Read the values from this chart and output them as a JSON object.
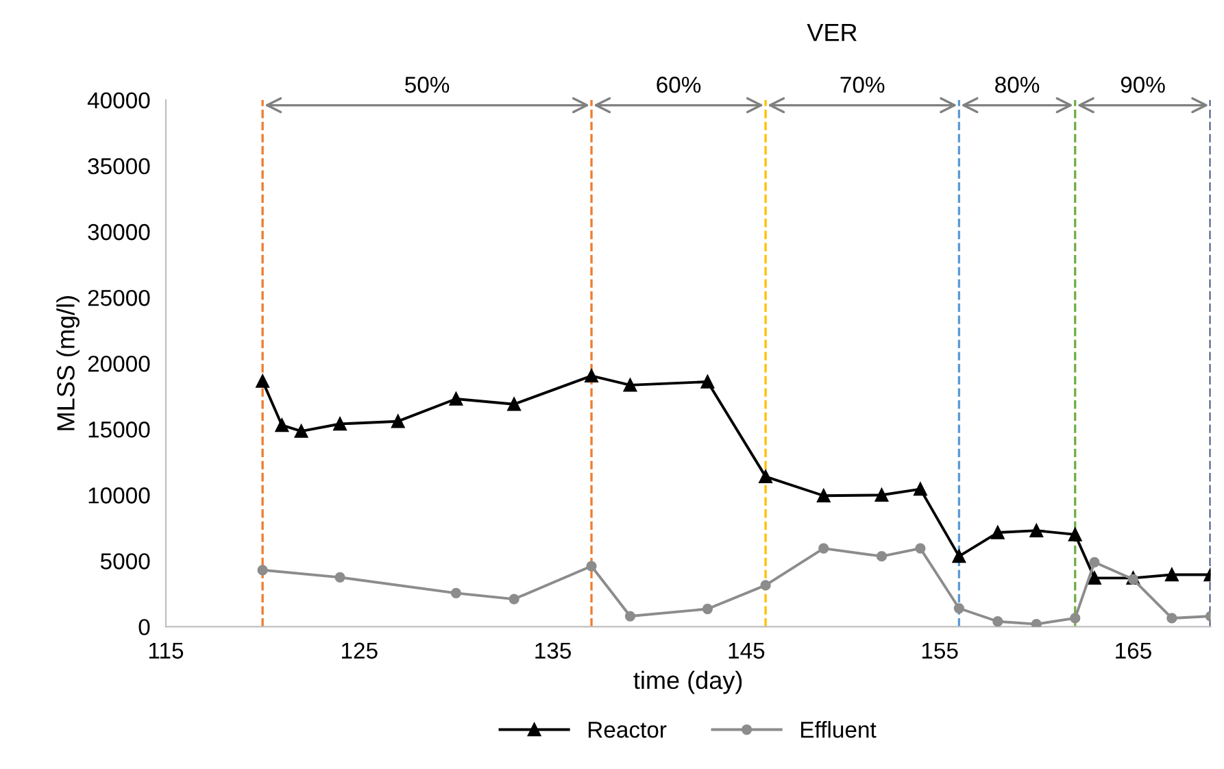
{
  "chart_data": {
    "type": "line",
    "title": "VER",
    "xlabel": "time (day)",
    "ylabel": "MLSS (mg/l)",
    "xlim": [
      115,
      169
    ],
    "xticks": [
      115,
      125,
      135,
      145,
      155,
      165
    ],
    "ylim": [
      0,
      40000
    ],
    "yticks": [
      0,
      5000,
      10000,
      15000,
      20000,
      25000,
      30000,
      35000,
      40000
    ],
    "grid": false,
    "legend": "bottom",
    "line_style": "solid",
    "series": [
      {
        "name": "Reactor",
        "color": "#000000",
        "marker": "triangle",
        "x": [
          120,
          121,
          122,
          124,
          127,
          130,
          133,
          137,
          139,
          143,
          146,
          149,
          152,
          154,
          156,
          158,
          160,
          162,
          163,
          165,
          167,
          169
        ],
        "values": [
          18650,
          15300,
          14850,
          15400,
          15600,
          17300,
          16900,
          19050,
          18350,
          18600,
          11400,
          9950,
          10000,
          10450,
          5350,
          7150,
          7300,
          7000,
          3700,
          3700,
          3950,
          3950
        ]
      },
      {
        "name": "Effluent",
        "color": "#8c8c8c",
        "marker": "circle",
        "x": [
          120,
          124,
          130,
          133,
          137,
          139,
          143,
          146,
          149,
          152,
          154,
          156,
          158,
          160,
          162,
          163,
          165,
          167,
          169
        ],
        "values": [
          4300,
          3750,
          2550,
          2100,
          4600,
          800,
          1350,
          3150,
          5950,
          5350,
          5950,
          1400,
          400,
          200,
          650,
          4900,
          3600,
          650,
          800
        ]
      }
    ],
    "ref_lines": [
      {
        "axis": "x",
        "value": 120,
        "color": "#ed7d31",
        "line_style": "dashed"
      },
      {
        "axis": "x",
        "value": 137,
        "color": "#ed7d31",
        "line_style": "dashed"
      },
      {
        "axis": "x",
        "value": 146,
        "color": "#ffc000",
        "line_style": "dashed"
      },
      {
        "axis": "x",
        "value": 156,
        "color": "#5b9bd5",
        "line_style": "dashed"
      },
      {
        "axis": "x",
        "value": 162,
        "color": "#70ad47",
        "line_style": "dashed"
      },
      {
        "axis": "x",
        "value": 169,
        "color": "#1f3864",
        "line_style": "dashed"
      }
    ],
    "annotations": [
      "50%",
      "60%",
      "70%",
      "80%",
      "90%"
    ]
  }
}
